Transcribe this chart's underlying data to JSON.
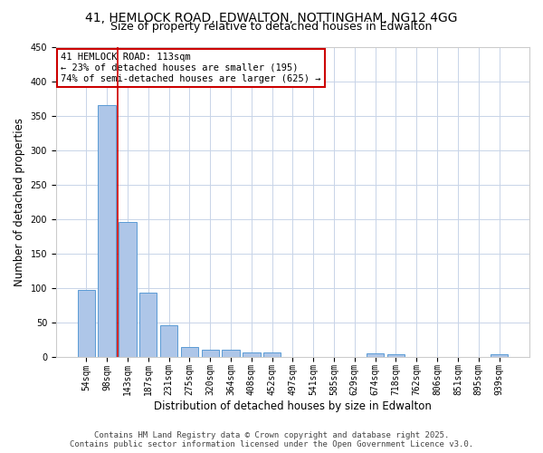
{
  "title_line1": "41, HEMLOCK ROAD, EDWALTON, NOTTINGHAM, NG12 4GG",
  "title_line2": "Size of property relative to detached houses in Edwalton",
  "xlabel": "Distribution of detached houses by size in Edwalton",
  "ylabel": "Number of detached properties",
  "categories": [
    "54sqm",
    "98sqm",
    "143sqm",
    "187sqm",
    "231sqm",
    "275sqm",
    "320sqm",
    "364sqm",
    "408sqm",
    "452sqm",
    "497sqm",
    "541sqm",
    "585sqm",
    "629sqm",
    "674sqm",
    "718sqm",
    "762sqm",
    "806sqm",
    "851sqm",
    "895sqm",
    "939sqm"
  ],
  "values": [
    97,
    365,
    195,
    93,
    45,
    14,
    10,
    10,
    6,
    6,
    0,
    0,
    0,
    0,
    5,
    4,
    0,
    0,
    0,
    0,
    3
  ],
  "bar_color": "#aec6e8",
  "bar_edge_color": "#5b9bd5",
  "background_color": "#ffffff",
  "grid_color": "#c8d4e8",
  "annotation_line1": "41 HEMLOCK ROAD: 113sqm",
  "annotation_line2": "← 23% of detached houses are smaller (195)",
  "annotation_line3": "74% of semi-detached houses are larger (625) →",
  "annotation_box_color": "#ffffff",
  "annotation_box_edge_color": "#cc0000",
  "vline_x": 1.5,
  "vline_color": "#cc0000",
  "ylim": [
    0,
    450
  ],
  "yticks": [
    0,
    50,
    100,
    150,
    200,
    250,
    300,
    350,
    400,
    450
  ],
  "footer_line1": "Contains HM Land Registry data © Crown copyright and database right 2025.",
  "footer_line2": "Contains public sector information licensed under the Open Government Licence v3.0.",
  "title_fontsize": 10,
  "subtitle_fontsize": 9,
  "axis_label_fontsize": 8.5,
  "tick_fontsize": 7,
  "annotation_fontsize": 7.5,
  "footer_fontsize": 6.5
}
